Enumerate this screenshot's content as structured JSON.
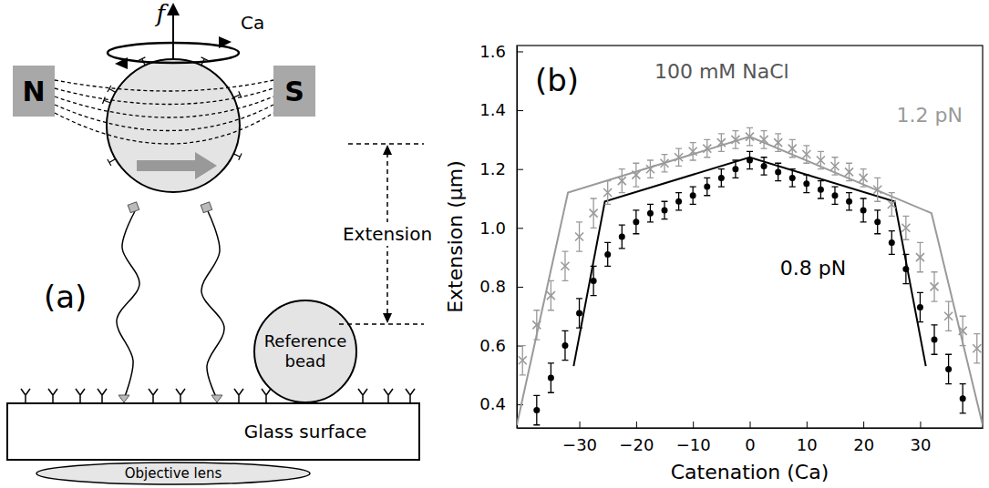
{
  "diagram": {
    "panel_label": "(a)",
    "force_label": "f",
    "rotation_label": "Ca",
    "magnet_north": "N",
    "magnet_south": "S",
    "extension_label": "Extension",
    "reference_bead": "Reference bead",
    "surface": "Glass surface",
    "objective": "Objective lens"
  },
  "chart_data": {
    "type": "scatter",
    "title": "100 mM NaCl",
    "annotations": [
      "(b)"
    ],
    "x_label": "Catenation (Ca)",
    "y_label": "Extension (μm)",
    "xlim": [
      -41,
      41
    ],
    "xticks": [
      {
        "value": -30,
        "label": "−30"
      },
      {
        "value": -20,
        "label": "−20"
      },
      {
        "value": -10,
        "label": "−10"
      },
      0,
      10,
      20,
      30
    ],
    "ylim": [
      0.32,
      1.62
    ],
    "yticks": [
      0.4,
      0.6,
      0.8,
      {
        "value": 1,
        "label": "1.0"
      },
      1.2,
      1.4,
      1.6
    ],
    "grid": false,
    "series": [
      {
        "name": "1.2 pN",
        "type": "scatter",
        "marker": "x",
        "color": "#9a9a9a",
        "x": [
          -40,
          -37.5,
          -35,
          -32.5,
          -30,
          -27.5,
          -25,
          -22.5,
          -20,
          -17.5,
          -15,
          -12.5,
          -10,
          -7.5,
          -5,
          -2.5,
          0,
          2.5,
          5,
          7.5,
          10,
          12.5,
          15,
          17.5,
          20,
          22.5,
          25,
          27.5,
          30,
          32.5,
          35,
          37.5,
          40
        ],
        "values": [
          0.55,
          0.67,
          0.77,
          0.87,
          0.97,
          1.05,
          1.12,
          1.16,
          1.18,
          1.2,
          1.22,
          1.24,
          1.26,
          1.27,
          1.29,
          1.3,
          1.31,
          1.3,
          1.29,
          1.27,
          1.25,
          1.23,
          1.21,
          1.19,
          1.17,
          1.13,
          1.08,
          1.0,
          0.9,
          0.8,
          0.7,
          0.65,
          0.59
        ],
        "errors": [
          0.05,
          0.05,
          0.05,
          0.05,
          0.05,
          0.05,
          0.04,
          0.04,
          0.04,
          0.03,
          0.03,
          0.03,
          0.03,
          0.03,
          0.03,
          0.03,
          0.03,
          0.03,
          0.03,
          0.03,
          0.03,
          0.03,
          0.03,
          0.03,
          0.03,
          0.04,
          0.04,
          0.04,
          0.05,
          0.05,
          0.05,
          0.05,
          0.05
        ]
      },
      {
        "type": "line",
        "line_style": "solid",
        "color": "#9a9a9a",
        "x": [
          -41,
          -32,
          0,
          32,
          41
        ],
        "values": [
          0.33,
          1.12,
          1.31,
          1.05,
          0.33
        ]
      },
      {
        "name": "0.8 pN",
        "type": "scatter",
        "marker": "o",
        "color": "#000000",
        "x": [
          -37.5,
          -35,
          -32.5,
          -30,
          -27.5,
          -25,
          -22.5,
          -20,
          -17.5,
          -15,
          -12.5,
          -10,
          -7.5,
          -5,
          -2.5,
          0,
          2.5,
          5,
          7.5,
          10,
          12.5,
          15,
          17.5,
          20,
          22.5,
          25,
          27.5,
          30,
          32.5,
          35,
          37.5
        ],
        "values": [
          0.38,
          0.49,
          0.6,
          0.71,
          0.82,
          0.91,
          0.97,
          1.02,
          1.05,
          1.06,
          1.09,
          1.11,
          1.14,
          1.17,
          1.2,
          1.23,
          1.21,
          1.19,
          1.17,
          1.15,
          1.13,
          1.11,
          1.09,
          1.06,
          1.02,
          0.95,
          0.86,
          0.73,
          0.62,
          0.52,
          0.42
        ],
        "errors": [
          0.05,
          0.05,
          0.05,
          0.05,
          0.05,
          0.04,
          0.04,
          0.04,
          0.03,
          0.03,
          0.03,
          0.03,
          0.03,
          0.03,
          0.03,
          0.03,
          0.03,
          0.03,
          0.03,
          0.03,
          0.03,
          0.03,
          0.03,
          0.04,
          0.04,
          0.04,
          0.05,
          0.05,
          0.05,
          0.05,
          0.05
        ]
      },
      {
        "type": "line",
        "line_style": "solid",
        "color": "#000000",
        "x": [
          -31,
          -25.5,
          0,
          25.5,
          31
        ],
        "values": [
          0.53,
          1.09,
          1.24,
          1.09,
          0.53
        ]
      }
    ]
  }
}
